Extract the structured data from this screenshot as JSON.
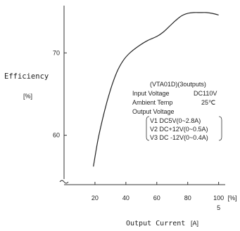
{
  "chart_data": {
    "type": "line",
    "ylabel": "Efficiency",
    "ylabel_unit": "[%]",
    "xlabel": "Output Current",
    "xlabel_unit": "[A]",
    "x_ticks": [
      "20",
      "40",
      "60",
      "80",
      "100"
    ],
    "x_unit_tick": "[%]",
    "x_scale_note": "5",
    "y_ticks": [
      "60",
      "70"
    ],
    "xlim": [
      0,
      112
    ],
    "ylim": [
      54,
      76
    ],
    "axis_break": true,
    "grid": false,
    "series": [
      {
        "x": [
          19,
          22,
          26,
          30,
          34,
          38,
          42,
          48,
          54,
          60,
          64,
          68,
          72,
          76,
          80,
          84,
          88,
          92,
          96,
          100
        ],
        "y": [
          56.2,
          59.5,
          62.8,
          65.5,
          67.6,
          69.0,
          69.9,
          70.8,
          71.5,
          72.0,
          72.5,
          73.2,
          73.9,
          74.5,
          74.8,
          74.9,
          74.9,
          74.9,
          74.8,
          74.6
        ]
      }
    ],
    "annotation": {
      "model": "(VTA01D)(3outputs)",
      "input_voltage_label": "Input Voltage",
      "input_voltage_value": "DC110V",
      "ambient_label": "Ambient Temp",
      "ambient_value": "25℃",
      "output_voltage_label": "Output Voltage",
      "outputs": [
        "V1 DC5V(0~2.8A)",
        "V2 DC+12V(0~0.5A)",
        "V3 DC -12V(0~0.4A)"
      ]
    }
  }
}
